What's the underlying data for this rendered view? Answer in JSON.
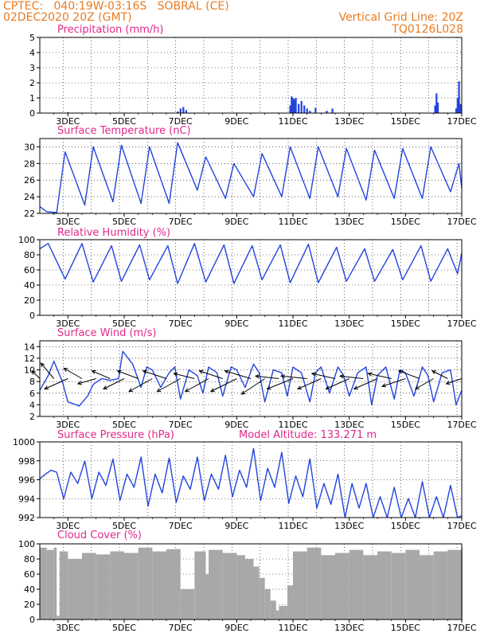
{
  "header": {
    "left_line1": "CPTEC:   040:19W-03:16S   SOBRAL (CE)",
    "left_line2": "02DEC2020 20Z (GMT)",
    "right_line1": "Vertical Grid Line: 20Z",
    "right_line2": "TQ0126L028"
  },
  "colors": {
    "header": "#e87b22",
    "title": "#e0288c",
    "series": "#2244dd",
    "bars": "#a8a8a8",
    "wind_arrows": "#000000"
  },
  "x_ticks": [
    "3DEC",
    "5DEC",
    "7DEC",
    "9DEC",
    "11DEC",
    "13DEC",
    "15DEC",
    "17DEC"
  ],
  "vertical_grid_line": "20Z",
  "chart_data": [
    {
      "type": "bar",
      "title": "Precipitation (mm/h)",
      "ylim": [
        0,
        5
      ],
      "yticks": [
        "0",
        "1",
        "2",
        "3",
        "4",
        "5"
      ],
      "series": [
        {
          "x": [
            3.0,
            6.9,
            7.0,
            7.1,
            7.2,
            10.9,
            10.95,
            11.0,
            11.05,
            11.1,
            11.2,
            11.3,
            11.4,
            11.5,
            11.6,
            11.8,
            12.2,
            12.4,
            16.05,
            16.1,
            16.15,
            16.8,
            16.85,
            16.9,
            16.95
          ],
          "values": [
            0.05,
            0.1,
            0.3,
            0.4,
            0.2,
            0.5,
            1.1,
            1.0,
            0.9,
            1.0,
            0.6,
            0.8,
            0.5,
            0.3,
            0.15,
            0.35,
            0.15,
            0.3,
            0.5,
            1.3,
            0.7,
            0.3,
            1.0,
            2.1,
            0.6
          ]
        }
      ]
    },
    {
      "type": "line",
      "title": "Surface Temperature (nC)",
      "ylim": [
        22,
        31
      ],
      "yticks": [
        "22",
        "24",
        "26",
        "28",
        "30"
      ],
      "series": [
        {
          "x": [
            2.0,
            2.25,
            2.6,
            2.9,
            3.6,
            3.9,
            4.6,
            4.9,
            5.6,
            5.9,
            6.6,
            6.9,
            7.6,
            7.9,
            8.6,
            8.9,
            9.6,
            9.9,
            10.6,
            10.9,
            11.6,
            11.9,
            12.6,
            12.9,
            13.6,
            13.9,
            14.6,
            14.9,
            15.6,
            15.9,
            16.6,
            16.9,
            17.0
          ],
          "values": [
            22.8,
            22.2,
            22.1,
            29.4,
            23.0,
            30.0,
            23.4,
            30.2,
            23.2,
            30.0,
            23.2,
            30.5,
            24.8,
            28.8,
            23.8,
            28.0,
            24.0,
            29.2,
            24.0,
            30.0,
            23.8,
            30.0,
            24.0,
            29.8,
            23.6,
            29.6,
            23.8,
            29.8,
            23.8,
            30.0,
            24.6,
            28.0,
            25.0
          ]
        }
      ]
    },
    {
      "type": "line",
      "title": "Relative Humidity (%)",
      "ylim": [
        0,
        100
      ],
      "yticks": [
        "0",
        "20",
        "40",
        "60",
        "80",
        "100"
      ],
      "series": [
        {
          "x": [
            2.0,
            2.3,
            2.9,
            3.5,
            3.9,
            4.55,
            4.9,
            5.55,
            5.9,
            6.55,
            6.9,
            7.5,
            7.9,
            8.55,
            8.9,
            9.55,
            9.9,
            10.55,
            10.9,
            11.55,
            11.9,
            12.55,
            12.9,
            13.55,
            13.9,
            14.55,
            14.9,
            15.55,
            15.9,
            16.5,
            16.85,
            17.0
          ],
          "values": [
            88,
            95,
            48,
            95,
            44,
            92,
            45,
            93,
            47,
            92,
            42,
            95,
            44,
            93,
            42,
            92,
            47,
            93,
            43,
            94,
            43,
            90,
            45,
            88,
            45,
            87,
            47,
            92,
            45,
            88,
            55,
            82
          ]
        }
      ]
    },
    {
      "type": "line",
      "title": "Surface Wind (m/s)",
      "ylim": [
        2,
        15
      ],
      "yticks": [
        "2",
        "4",
        "6",
        "8",
        "10",
        "12",
        "14"
      ],
      "series": [
        {
          "x": [
            2.0,
            2.3,
            2.5,
            2.8,
            3.0,
            3.4,
            3.7,
            3.9,
            4.2,
            4.5,
            4.8,
            4.95,
            5.3,
            5.6,
            5.8,
            6.0,
            6.3,
            6.6,
            6.8,
            7.0,
            7.3,
            7.6,
            7.8,
            8.0,
            8.3,
            8.5,
            8.8,
            9.0,
            9.3,
            9.6,
            9.8,
            10.0,
            10.3,
            10.6,
            10.8,
            11.0,
            11.3,
            11.6,
            11.8,
            12.0,
            12.3,
            12.6,
            12.8,
            13.0,
            13.3,
            13.6,
            13.8,
            14.0,
            14.3,
            14.6,
            14.8,
            15.0,
            15.3,
            15.6,
            15.8,
            16.0,
            16.3,
            16.6,
            16.8,
            17.0
          ],
          "values": [
            6.5,
            9.0,
            11.5,
            8.0,
            4.5,
            3.8,
            5.5,
            7.5,
            8.5,
            8.2,
            8.5,
            13.2,
            11.0,
            7.0,
            10.5,
            10.0,
            7.0,
            9.5,
            10.5,
            5.0,
            10.0,
            9.0,
            6.0,
            10.5,
            9.5,
            5.5,
            10.5,
            10.0,
            7.0,
            11.0,
            9.5,
            4.5,
            10.0,
            9.5,
            5.5,
            10.5,
            9.5,
            4.5,
            9.5,
            10.5,
            6.0,
            10.5,
            9.0,
            5.5,
            9.5,
            10.5,
            4.0,
            9.0,
            10.5,
            5.0,
            10.0,
            9.5,
            5.5,
            10.5,
            9.0,
            4.5,
            9.5,
            10.0,
            4.0,
            6.5
          ]
        }
      ],
      "wind_barbs": {
        "x": [
          2.0,
          2.5,
          3.0,
          3.5,
          4.0,
          4.5,
          5.0,
          5.5,
          6.0,
          6.5,
          7.0,
          7.5,
          8.0,
          8.5,
          9.0,
          9.5,
          10.0,
          10.5,
          11.0,
          11.5,
          12.0,
          12.5,
          13.0,
          13.5,
          14.0,
          14.5,
          15.0,
          15.5,
          16.0,
          16.5,
          17.0
        ],
        "u": [
          -1.5,
          -2.5,
          -4.5,
          -3.5,
          -3.5,
          -3.5,
          -4.0,
          -4.0,
          -4.5,
          -4.5,
          -4.5,
          -4.0,
          -4.5,
          -4.5,
          -5.0,
          -5.0,
          -4.5,
          -4.5,
          -5.0,
          -5.0,
          -4.5,
          -4.5,
          -4.5,
          -4.5,
          -4.5,
          -4.5,
          -4.5,
          -4.0,
          -3.5,
          -3.0,
          -3.0
        ],
        "v": [
          1.5,
          3.0,
          -2.0,
          2.0,
          -1.0,
          1.5,
          -2.0,
          1.5,
          -2.5,
          1.5,
          -2.5,
          1.0,
          -2.5,
          1.5,
          -2.5,
          1.5,
          -3.0,
          0.5,
          -2.0,
          0.5,
          -2.0,
          1.0,
          -2.0,
          0.5,
          -2.0,
          1.0,
          -1.5,
          1.5,
          -2.0,
          1.5,
          -1.0
        ]
      }
    },
    {
      "type": "line",
      "title": "Surface Pressure (hPa)",
      "annotation": "Model Altitude: 133.271 m",
      "ylim": [
        992,
        1000
      ],
      "yticks": [
        "992",
        "994",
        "996",
        "998",
        "1000"
      ],
      "series": [
        {
          "x": [
            2.0,
            2.2,
            2.4,
            2.6,
            2.85,
            3.1,
            3.35,
            3.6,
            3.85,
            4.1,
            4.35,
            4.6,
            4.85,
            5.1,
            5.35,
            5.6,
            5.85,
            6.1,
            6.35,
            6.6,
            6.85,
            7.1,
            7.35,
            7.6,
            7.85,
            8.1,
            8.35,
            8.6,
            8.85,
            9.1,
            9.35,
            9.6,
            9.85,
            10.1,
            10.35,
            10.6,
            10.85,
            11.1,
            11.35,
            11.6,
            11.85,
            12.1,
            12.35,
            12.6,
            12.85,
            13.1,
            13.35,
            13.6,
            13.85,
            14.1,
            14.35,
            14.6,
            14.85,
            15.1,
            15.35,
            15.6,
            15.85,
            16.1,
            16.35,
            16.6,
            16.85,
            17.0
          ],
          "values": [
            996.1,
            996.6,
            997.0,
            996.8,
            994.0,
            996.8,
            995.6,
            998.0,
            994.0,
            996.8,
            995.4,
            998.2,
            993.8,
            996.6,
            995.2,
            998.4,
            993.2,
            996.6,
            994.6,
            998.3,
            993.6,
            996.4,
            995.0,
            998.4,
            993.8,
            996.6,
            995.0,
            998.6,
            994.2,
            997.0,
            995.2,
            999.3,
            993.8,
            997.2,
            995.2,
            998.9,
            993.5,
            996.4,
            994.2,
            998.2,
            993.0,
            995.6,
            993.4,
            996.6,
            991.7,
            995.6,
            993.0,
            995.6,
            991.6,
            994.2,
            992.0,
            995.2,
            991.6,
            994.0,
            992.0,
            995.8,
            991.8,
            994.2,
            991.9,
            995.4,
            992.0,
            992.2
          ]
        }
      ]
    },
    {
      "type": "bar",
      "title": "Cloud Cover (%)",
      "ylim": [
        0,
        100
      ],
      "yticks": [
        "0",
        "20",
        "40",
        "60",
        "80",
        "100"
      ],
      "series": [
        {
          "x": [
            2.0,
            2.25,
            2.5,
            2.6,
            2.7,
            3.0,
            3.5,
            4.0,
            4.5,
            5.0,
            5.5,
            6.0,
            6.5,
            7.0,
            7.5,
            7.9,
            8.0,
            8.5,
            9.0,
            9.3,
            9.6,
            9.8,
            10.0,
            10.2,
            10.4,
            10.5,
            10.8,
            11.0,
            11.5,
            12.0,
            12.5,
            13.0,
            13.5,
            14.0,
            14.5,
            15.0,
            15.5,
            16.0,
            16.5,
            17.0
          ],
          "values": [
            95,
            92,
            95,
            5,
            90,
            80,
            88,
            86,
            90,
            88,
            95,
            90,
            93,
            40,
            90,
            60,
            92,
            88,
            85,
            80,
            70,
            55,
            40,
            25,
            12,
            18,
            45,
            90,
            95,
            85,
            88,
            92,
            85,
            90,
            88,
            92,
            85,
            90,
            92,
            95
          ]
        }
      ]
    }
  ]
}
